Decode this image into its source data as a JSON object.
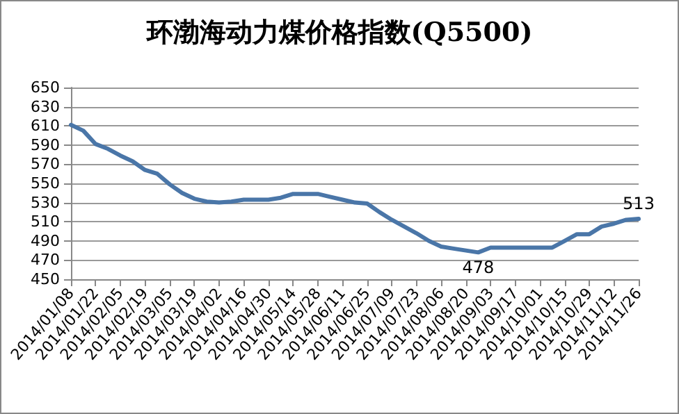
{
  "chart_data": {
    "type": "line",
    "title": "环渤海动力煤价格指数(Q5500)",
    "categories": [
      "2014/01/08",
      null,
      "2014/01/22",
      null,
      "2014/02/05",
      null,
      "2014/02/19",
      null,
      "2014/03/05",
      null,
      "2014/03/19",
      null,
      "2014/04/02",
      null,
      "2014/04/16",
      null,
      "2014/04/30",
      null,
      "2014/05/14",
      null,
      "2014/05/28",
      null,
      "2014/06/11",
      null,
      "2014/06/25",
      null,
      "2014/07/09",
      null,
      "2014/07/23",
      null,
      "2014/08/06",
      null,
      "2014/08/20",
      null,
      "2014/09/03",
      null,
      "2014/09/17",
      null,
      "2014/10/01",
      null,
      "2014/10/15",
      null,
      "2014/10/29",
      null,
      "2014/11/12",
      null,
      "2014/11/26"
    ],
    "series": [
      {
        "color": "#4a76a8",
        "values": [
          611,
          605,
          591,
          586,
          579,
          573,
          564,
          560,
          549,
          540,
          534,
          531,
          530,
          531,
          533,
          533,
          533,
          535,
          539,
          539,
          539,
          536,
          533,
          530,
          529,
          520,
          512,
          505,
          498,
          490,
          484,
          482,
          480,
          478,
          483,
          483,
          483,
          483,
          483,
          483,
          490,
          497,
          497,
          505,
          508,
          512,
          513
        ],
        "value_labels": [
          null,
          null,
          null,
          null,
          null,
          null,
          null,
          null,
          null,
          null,
          null,
          null,
          null,
          null,
          null,
          null,
          null,
          null,
          null,
          null,
          null,
          null,
          null,
          null,
          null,
          null,
          null,
          null,
          null,
          null,
          null,
          null,
          null,
          "478",
          null,
          null,
          null,
          null,
          null,
          null,
          null,
          null,
          null,
          null,
          null,
          null,
          "513"
        ]
      }
    ],
    "ylim": [
      450,
      650
    ],
    "yticks": [
      450,
      470,
      490,
      510,
      530,
      550,
      570,
      590,
      610,
      630,
      650
    ],
    "grid": "y",
    "marker": "none",
    "line_style": "solid"
  }
}
